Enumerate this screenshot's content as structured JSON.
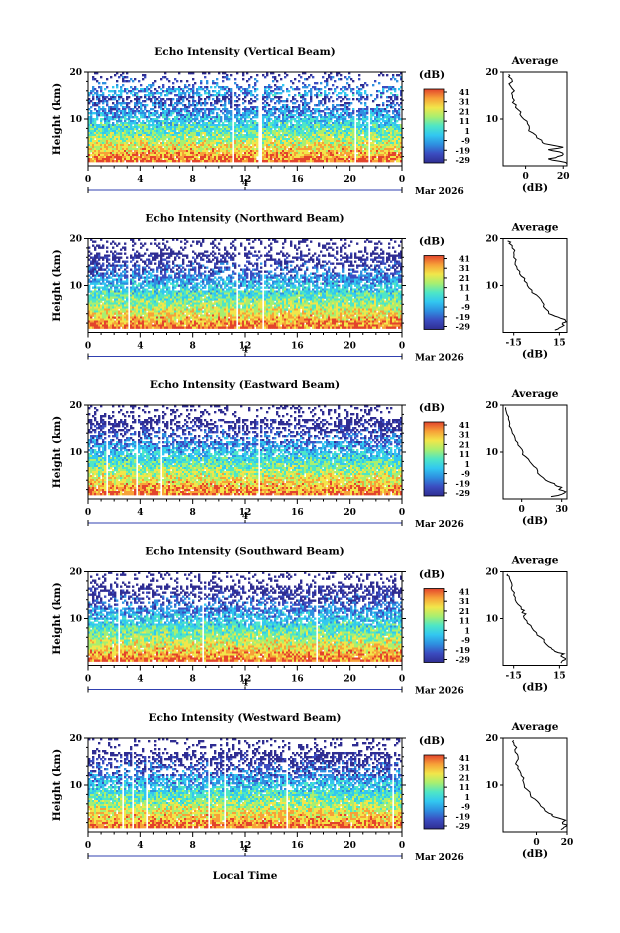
{
  "chart_data": {
    "type": "heatmap",
    "xlabel": "Local Time",
    "x_ticks": [
      "0",
      "4",
      "8",
      "12",
      "16",
      "20",
      "0"
    ],
    "date_marker": "4",
    "date_label": "Mar 2026",
    "xlim": [
      0,
      24
    ],
    "ylabel": "Height (km)",
    "ylim": [
      0,
      20
    ],
    "y_ticks": [
      "10",
      "20"
    ],
    "colorbar": {
      "unit": "(dB)",
      "range": [
        -29,
        41
      ],
      "ticks": [
        "41",
        "31",
        "21",
        "11",
        "1",
        "-9",
        "-19",
        "-29"
      ],
      "colors": [
        "#2f2d92",
        "#3b4cc0",
        "#2e8fe0",
        "#32c7f0",
        "#4ee6c6",
        "#a8ef70",
        "#f2e64a",
        "#f7a138",
        "#e3442c"
      ]
    },
    "average_profile": {
      "title": "Average",
      "xlabel": "(dB)"
    },
    "panels": [
      {
        "title": "Echo Intensity (Vertical Beam)",
        "avg_ticks": [
          "0",
          "20"
        ],
        "avg_xlim": [
          -12,
          22
        ],
        "avg_profile": [
          [
            0.5,
            22
          ],
          [
            1.0,
            18
          ],
          [
            1.5,
            12
          ],
          [
            2.0,
            17
          ],
          [
            2.5,
            20
          ],
          [
            3.0,
            18
          ],
          [
            3.5,
            12
          ],
          [
            4.0,
            20
          ],
          [
            4.5,
            13
          ],
          [
            5.0,
            9
          ],
          [
            6.0,
            6
          ],
          [
            7.0,
            4
          ],
          [
            8.0,
            2
          ],
          [
            9.0,
            1
          ],
          [
            10.0,
            -1
          ],
          [
            11.0,
            -3
          ],
          [
            12.0,
            -4
          ],
          [
            13.0,
            -5
          ],
          [
            14.0,
            -6
          ],
          [
            15.0,
            -7
          ],
          [
            16.0,
            -6
          ],
          [
            17.0,
            -8
          ],
          [
            18.0,
            -7
          ],
          [
            19.0,
            -9
          ],
          [
            19.5,
            -9
          ]
        ]
      },
      {
        "title": "Echo Intensity (Northward Beam)",
        "avg_ticks": [
          "-15",
          "15"
        ],
        "avg_xlim": [
          -22,
          20
        ],
        "avg_profile": [
          [
            0.5,
            12
          ],
          [
            1.0,
            15
          ],
          [
            1.5,
            18
          ],
          [
            2.0,
            17
          ],
          [
            2.5,
            19
          ],
          [
            3.0,
            16
          ],
          [
            3.5,
            12
          ],
          [
            4.0,
            8
          ],
          [
            5.0,
            6
          ],
          [
            6.0,
            5
          ],
          [
            7.0,
            3
          ],
          [
            8.0,
            0
          ],
          [
            9.0,
            -3
          ],
          [
            10.0,
            -6
          ],
          [
            11.0,
            -8
          ],
          [
            12.0,
            -10
          ],
          [
            13.0,
            -11
          ],
          [
            14.0,
            -13
          ],
          [
            15.0,
            -14
          ],
          [
            16.0,
            -15
          ],
          [
            17.0,
            -15
          ],
          [
            18.0,
            -16
          ],
          [
            19.0,
            -18
          ],
          [
            19.5,
            -19
          ]
        ]
      },
      {
        "title": "Echo Intensity (Eastward Beam)",
        "avg_ticks": [
          "0",
          "30"
        ],
        "avg_xlim": [
          -14,
          34
        ],
        "avg_profile": [
          [
            0.5,
            22
          ],
          [
            1.0,
            30
          ],
          [
            1.5,
            33
          ],
          [
            2.0,
            28
          ],
          [
            2.5,
            30
          ],
          [
            3.0,
            25
          ],
          [
            3.5,
            22
          ],
          [
            4.0,
            18
          ],
          [
            5.0,
            14
          ],
          [
            6.0,
            12
          ],
          [
            7.0,
            9
          ],
          [
            8.0,
            6
          ],
          [
            9.0,
            3
          ],
          [
            10.0,
            1
          ],
          [
            11.0,
            -1
          ],
          [
            12.0,
            -3
          ],
          [
            13.0,
            -5
          ],
          [
            14.0,
            -7
          ],
          [
            15.0,
            -8
          ],
          [
            16.0,
            -9
          ],
          [
            17.0,
            -10
          ],
          [
            18.0,
            -11
          ],
          [
            19.0,
            -12
          ],
          [
            19.5,
            -12
          ]
        ]
      },
      {
        "title": "Echo Intensity (Southward Beam)",
        "avg_ticks": [
          "-15",
          "15"
        ],
        "avg_xlim": [
          -22,
          20
        ],
        "avg_profile": [
          [
            0.5,
            16
          ],
          [
            1.0,
            17
          ],
          [
            1.5,
            19
          ],
          [
            2.0,
            16
          ],
          [
            2.5,
            18
          ],
          [
            3.0,
            12
          ],
          [
            3.5,
            10
          ],
          [
            4.0,
            8
          ],
          [
            5.0,
            5
          ],
          [
            6.0,
            3
          ],
          [
            7.0,
            0
          ],
          [
            8.0,
            -3
          ],
          [
            9.0,
            -6
          ],
          [
            10.0,
            -8
          ],
          [
            11.0,
            -7
          ],
          [
            11.5,
            -9
          ],
          [
            12.0,
            -10
          ],
          [
            13.0,
            -12
          ],
          [
            14.0,
            -14
          ],
          [
            15.0,
            -15
          ],
          [
            16.0,
            -16
          ],
          [
            17.0,
            -16
          ],
          [
            18.0,
            -17
          ],
          [
            19.0,
            -18
          ],
          [
            19.5,
            -19
          ]
        ]
      },
      {
        "title": "Echo Intensity (Westward Beam)",
        "avg_ticks": [
          "0",
          "20"
        ],
        "avg_xlim": [
          -22,
          20
        ],
        "avg_profile": [
          [
            0.5,
            16
          ],
          [
            1.0,
            18
          ],
          [
            1.5,
            20
          ],
          [
            2.0,
            17
          ],
          [
            2.5,
            19
          ],
          [
            3.0,
            14
          ],
          [
            3.5,
            10
          ],
          [
            4.0,
            8
          ],
          [
            5.0,
            5
          ],
          [
            6.0,
            2
          ],
          [
            7.0,
            -1
          ],
          [
            8.0,
            -4
          ],
          [
            9.0,
            -6
          ],
          [
            10.0,
            -8
          ],
          [
            11.0,
            -9
          ],
          [
            12.0,
            -10
          ],
          [
            13.0,
            -11
          ],
          [
            14.0,
            -12
          ],
          [
            15.0,
            -13
          ],
          [
            16.0,
            -12
          ],
          [
            17.0,
            -14
          ],
          [
            18.0,
            -13
          ],
          [
            19.0,
            -15
          ],
          [
            19.5,
            -15
          ]
        ]
      }
    ]
  }
}
